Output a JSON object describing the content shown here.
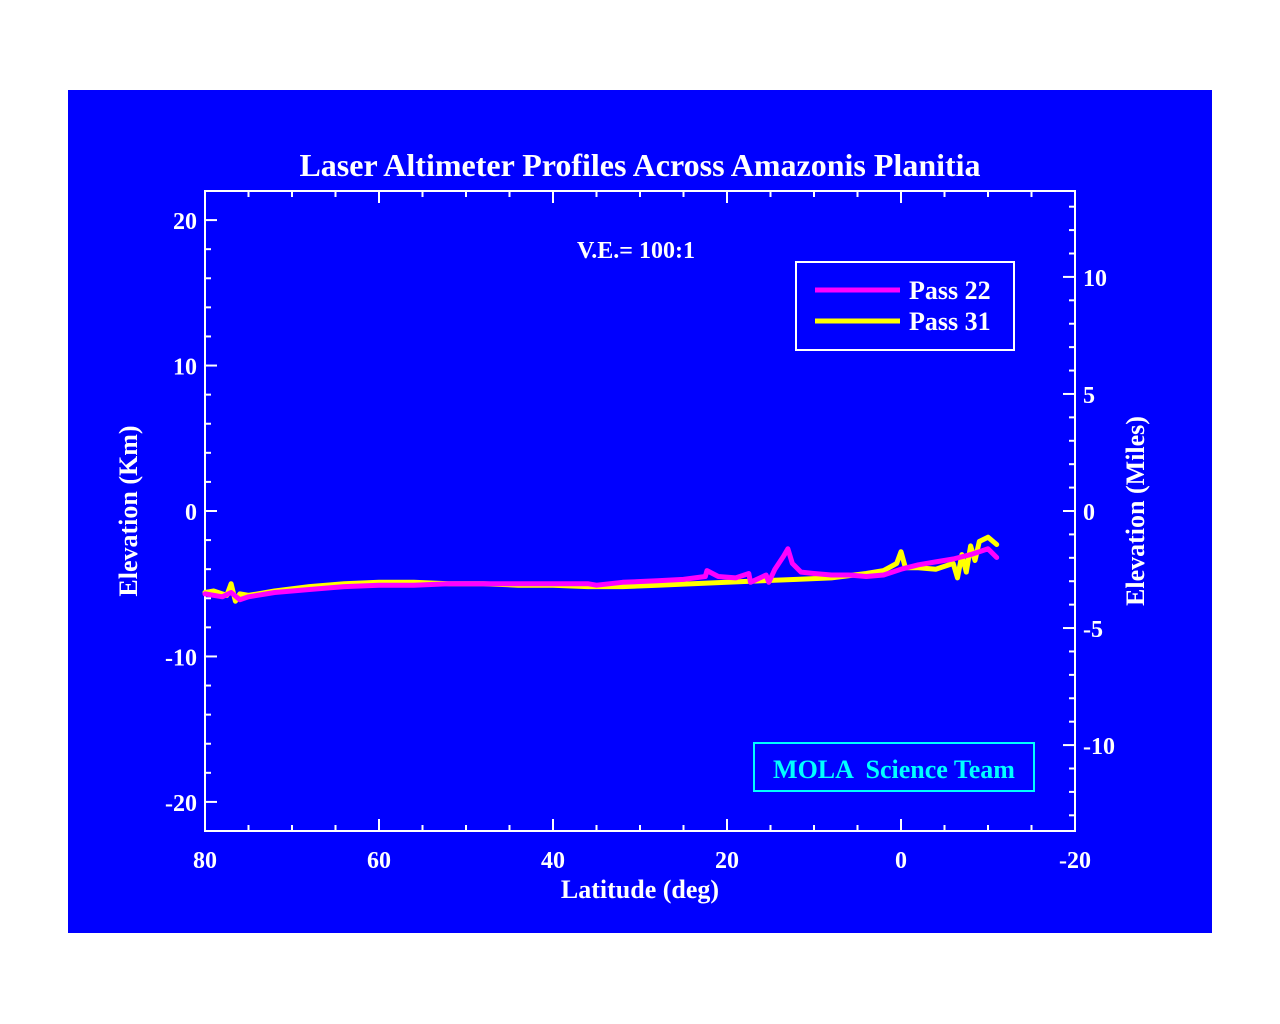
{
  "chart_data": {
    "type": "line",
    "title": "Laser Altimeter Profiles Across Amazonis Planitia",
    "annotation": "V.E.= 100:1",
    "credit": "MOLA  Science Team",
    "xlabel": "Latitude (deg)",
    "ylabel_left": "Elevation (Km)",
    "ylabel_right": "Elevation (Miles)",
    "xlim": [
      80,
      -20
    ],
    "ylim": [
      -22,
      22
    ],
    "ylim_right_miles": [
      -13.67,
      13.67
    ],
    "x_ticks": [
      80,
      60,
      40,
      20,
      0,
      -20
    ],
    "x_tick_labels": [
      "80",
      "60",
      "40",
      "20",
      "0",
      "-20"
    ],
    "y_ticks_left": [
      20,
      10,
      0,
      -10,
      -20
    ],
    "y_tick_labels_left": [
      "20",
      "10",
      "0",
      "-10",
      "-20"
    ],
    "y_ticks_right_miles": [
      10,
      5,
      0,
      -5,
      -10
    ],
    "y_tick_labels_right": [
      "10",
      "5",
      "0",
      "-5",
      "-10"
    ],
    "legend_placement": "top-right",
    "grid": false,
    "colors": {
      "background": "#0000ff",
      "axes": "#ffffff",
      "pass22": "#ff00ff",
      "pass31": "#ffff00",
      "credit": "#00ffff"
    },
    "series": [
      {
        "name": "Pass 22",
        "color": "#ff00ff",
        "x": [
          80,
          78,
          77,
          76,
          75,
          72,
          68,
          64,
          60,
          56,
          52,
          48,
          44,
          40,
          36,
          35,
          32,
          28,
          25,
          22.5,
          22.3,
          21,
          19,
          17.5,
          17.3,
          15.5,
          15.2,
          14.5,
          13.5,
          13,
          12.5,
          11.5,
          10,
          8,
          6,
          4,
          2,
          0,
          -2,
          -4,
          -6,
          -8,
          -9,
          -10,
          -11
        ],
        "y": [
          -5.7,
          -5.9,
          -5.6,
          -6.1,
          -5.9,
          -5.6,
          -5.4,
          -5.2,
          -5.1,
          -5.1,
          -5.0,
          -5.0,
          -5.0,
          -5.0,
          -5.0,
          -5.1,
          -4.9,
          -4.8,
          -4.7,
          -4.5,
          -4.1,
          -4.5,
          -4.6,
          -4.3,
          -4.9,
          -4.4,
          -4.9,
          -4.0,
          -3.1,
          -2.6,
          -3.6,
          -4.2,
          -4.3,
          -4.4,
          -4.4,
          -4.5,
          -4.4,
          -4.0,
          -3.7,
          -3.5,
          -3.3,
          -3.0,
          -2.8,
          -2.6,
          -3.2
        ]
      },
      {
        "name": "Pass 31",
        "color": "#ffff00",
        "x": [
          80,
          79,
          77.5,
          77,
          76.5,
          76,
          75,
          72,
          68,
          64,
          60,
          56,
          52,
          48,
          44,
          40,
          36,
          32,
          28,
          24,
          20,
          16,
          12,
          8,
          4,
          2,
          0.5,
          0,
          -0.5,
          -2,
          -4,
          -6,
          -6.5,
          -7,
          -7.5,
          -8,
          -8.5,
          -9,
          -10,
          -11
        ],
        "y": [
          -5.6,
          -5.5,
          -5.8,
          -5.0,
          -6.2,
          -5.7,
          -5.8,
          -5.5,
          -5.2,
          -5.0,
          -4.9,
          -4.9,
          -5.0,
          -5.0,
          -5.1,
          -5.1,
          -5.2,
          -5.2,
          -5.1,
          -5.0,
          -4.9,
          -4.8,
          -4.7,
          -4.6,
          -4.3,
          -4.1,
          -3.6,
          -2.8,
          -3.9,
          -3.9,
          -4.0,
          -3.6,
          -4.6,
          -3.0,
          -4.2,
          -2.4,
          -3.4,
          -2.1,
          -1.8,
          -2.3
        ]
      }
    ]
  }
}
